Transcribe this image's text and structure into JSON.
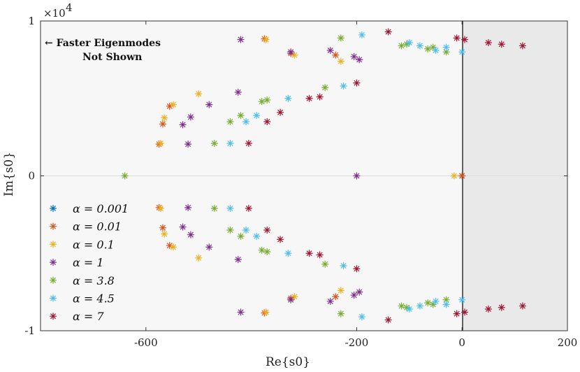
{
  "chart_data": {
    "type": "scatter",
    "title": "",
    "xlabel": "Re{s0}",
    "ylabel": "Im{s0}",
    "xlim": [
      -800,
      200
    ],
    "ylim": [
      -10000,
      10000
    ],
    "x_ticks": [
      -600,
      -200,
      0,
      200
    ],
    "x_tick_labels": [
      "-600",
      "-200",
      "0",
      "200"
    ],
    "y_ticks": [
      -10000,
      0,
      10000
    ],
    "y_tick_labels": [
      "-1",
      "0",
      "1"
    ],
    "y_exponent_label": "×10",
    "y_exponent_power": "4",
    "annotation_line1": "← Faster Eigenmodes",
    "annotation_line2": "Not Shown",
    "legend_position": "bottom-left",
    "series": [
      {
        "name": "α = 0.001",
        "color": "#0072BD",
        "points": [
          [
            0,
            0
          ]
        ]
      },
      {
        "name": "α = 0.01",
        "color": "#D95319",
        "points": [
          [
            -575,
            2050
          ],
          [
            -575,
            -2050
          ],
          [
            -568,
            3350
          ],
          [
            -568,
            -3350
          ],
          [
            -555,
            4500
          ],
          [
            -555,
            -4500
          ],
          [
            -325,
            -7900
          ],
          [
            -325,
            7900
          ],
          [
            -375,
            -8850
          ],
          [
            -375,
            8850
          ],
          [
            -240,
            -7800
          ],
          [
            -240,
            7800
          ],
          [
            0,
            0
          ]
        ]
      },
      {
        "name": "α = 0.1",
        "color": "#EDB120",
        "points": [
          [
            -572,
            2100
          ],
          [
            -572,
            -2100
          ],
          [
            -565,
            3750
          ],
          [
            -565,
            -3750
          ],
          [
            -548,
            4600
          ],
          [
            -548,
            -4600
          ],
          [
            -500,
            5300
          ],
          [
            -500,
            -5300
          ],
          [
            -318,
            -7800
          ],
          [
            -318,
            7800
          ],
          [
            -372,
            8800
          ],
          [
            -372,
            -8800
          ],
          [
            -230,
            7400
          ],
          [
            -230,
            -7400
          ],
          [
            -15,
            0
          ]
        ]
      },
      {
        "name": "α = 1",
        "color": "#7E2F8E",
        "points": [
          [
            -520,
            2050
          ],
          [
            -520,
            -2050
          ],
          [
            -530,
            3300
          ],
          [
            -530,
            -3300
          ],
          [
            -515,
            3800
          ],
          [
            -515,
            -3800
          ],
          [
            -480,
            4600
          ],
          [
            -480,
            -4600
          ],
          [
            -425,
            5400
          ],
          [
            -425,
            -5400
          ],
          [
            -325,
            -8000
          ],
          [
            -325,
            8000
          ],
          [
            -420,
            8800
          ],
          [
            -420,
            -8800
          ],
          [
            -250,
            8100
          ],
          [
            -250,
            -8100
          ],
          [
            -205,
            7700
          ],
          [
            -205,
            -7700
          ],
          [
            -195,
            7500
          ],
          [
            -195,
            -7500
          ],
          [
            -200,
            0
          ]
        ]
      },
      {
        "name": "α = 3.8",
        "color": "#77AC30",
        "points": [
          [
            -640,
            0
          ],
          [
            -470,
            2100
          ],
          [
            -470,
            -2100
          ],
          [
            -440,
            3500
          ],
          [
            -440,
            -3500
          ],
          [
            -420,
            3900
          ],
          [
            -420,
            -3900
          ],
          [
            -380,
            4800
          ],
          [
            -380,
            -4800
          ],
          [
            -370,
            4900
          ],
          [
            -370,
            -4900
          ],
          [
            -260,
            5700
          ],
          [
            -260,
            -5700
          ],
          [
            -230,
            8900
          ],
          [
            -230,
            -8900
          ],
          [
            -115,
            8400
          ],
          [
            -115,
            -8400
          ],
          [
            -105,
            8500
          ],
          [
            -105,
            -8500
          ],
          [
            -65,
            8200
          ],
          [
            -65,
            -8200
          ],
          [
            -55,
            8300
          ],
          [
            -55,
            -8300
          ],
          [
            -30,
            8000
          ],
          [
            -30,
            -8000
          ]
        ]
      },
      {
        "name": "α = 4.5",
        "color": "#4DBEEE",
        "points": [
          [
            -440,
            2100
          ],
          [
            -440,
            -2100
          ],
          [
            -410,
            3500
          ],
          [
            -410,
            -3500
          ],
          [
            -390,
            3900
          ],
          [
            -390,
            -3900
          ],
          [
            -330,
            5000
          ],
          [
            -330,
            -5000
          ],
          [
            -225,
            5800
          ],
          [
            -225,
            -5800
          ],
          [
            -190,
            9100
          ],
          [
            -190,
            -9100
          ],
          [
            -100,
            8600
          ],
          [
            -100,
            -8600
          ],
          [
            -80,
            8400
          ],
          [
            -80,
            -8400
          ],
          [
            -50,
            8100
          ],
          [
            -50,
            -8100
          ],
          [
            -30,
            8300
          ],
          [
            -30,
            -8300
          ],
          [
            0,
            8000
          ],
          [
            0,
            -8000
          ]
        ]
      },
      {
        "name": "α = 7",
        "color": "#A2142F",
        "points": [
          [
            -405,
            2100
          ],
          [
            -405,
            -2100
          ],
          [
            -370,
            3500
          ],
          [
            -370,
            -3500
          ],
          [
            -345,
            4100
          ],
          [
            -345,
            -4100
          ],
          [
            -290,
            5000
          ],
          [
            -290,
            -5000
          ],
          [
            -270,
            5100
          ],
          [
            -270,
            -5100
          ],
          [
            -200,
            6000
          ],
          [
            -200,
            -6000
          ],
          [
            -140,
            9300
          ],
          [
            -140,
            -9300
          ],
          [
            -10,
            8900
          ],
          [
            -10,
            -8900
          ],
          [
            5,
            8800
          ],
          [
            5,
            -8800
          ],
          [
            50,
            8600
          ],
          [
            50,
            -8600
          ],
          [
            75,
            8500
          ],
          [
            75,
            -8500
          ],
          [
            115,
            8400
          ],
          [
            115,
            -8400
          ]
        ]
      }
    ]
  }
}
